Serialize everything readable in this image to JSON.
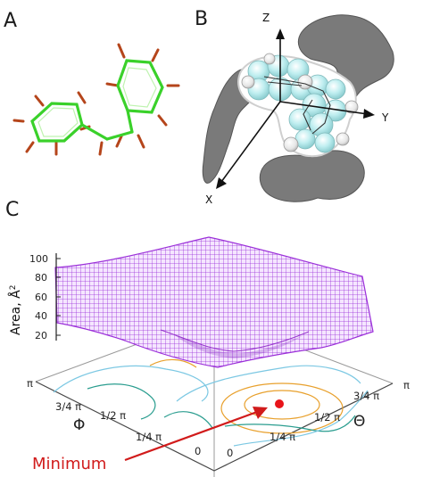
{
  "panels": {
    "a": {
      "label": "A"
    },
    "b": {
      "label": "B",
      "axes": {
        "z": "Z",
        "y": "Y",
        "x": "X"
      }
    },
    "c": {
      "label": "C",
      "zlabel": "Area, Å",
      "zlabel_sup": "2",
      "z_ticks": [
        "100",
        "80",
        "60",
        "40",
        "20"
      ],
      "phi_symbol": "Φ",
      "phi_ticks": [
        "π",
        "3/4 π",
        "1/2 π",
        "1/4 π",
        "0"
      ],
      "theta_symbol": "Θ",
      "theta_ticks": [
        "π",
        "3/4 π",
        "1/2 π",
        "1/4 π",
        "0"
      ],
      "annotation": "Minimum",
      "colors": {
        "surface": "#9b30d9",
        "minimum_marker": "#e8141a",
        "arrow": "#d11b1b",
        "contour_teal": "#2a9d8f",
        "contour_blue": "#7cc8e3",
        "contour_orange": "#e8a02c"
      }
    }
  }
}
